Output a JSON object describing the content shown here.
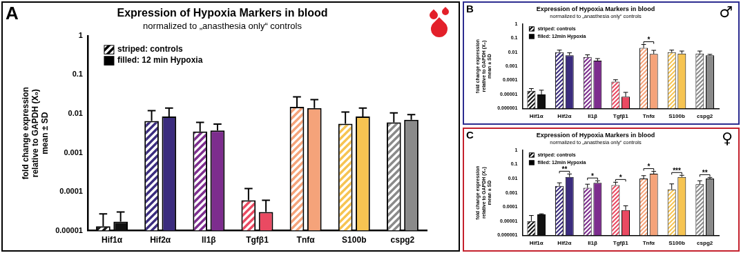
{
  "chart_data": [
    {
      "type": "bar",
      "panel": "A",
      "title": "Expression of Hypoxia Markers in blood",
      "subtitle": "normalized to „anasthesia only“ controls",
      "y_label": [
        "fold change expression",
        "relative to GAPDH (X₀)",
        "mean ± SD"
      ],
      "categories": [
        "Hif1α",
        "Hif2α",
        "Il1β",
        "Tgfβ1",
        "Tnfα",
        "S100b",
        "cspg2"
      ],
      "colors": [
        "#111111",
        "#3b2c7e",
        "#7d2d8e",
        "#ea4a62",
        "#f5a37a",
        "#f6c452",
        "#8a8a8a"
      ],
      "series": [
        {
          "name": "striped: controls",
          "values": [
            1.3e-05,
            0.0065,
            0.0035,
            6e-05,
            0.015,
            0.0055,
            0.006
          ],
          "errors": [
            1.4e-05,
            0.0055,
            0.0025,
            6e-05,
            0.012,
            0.0055,
            0.0045
          ]
        },
        {
          "name": "filled: 12 min Hypoxia",
          "values": [
            1.7e-05,
            0.0085,
            0.0037,
            3e-05,
            0.014,
            0.0085,
            0.007
          ],
          "errors": [
            1.3e-05,
            0.0055,
            0.0017,
            3e-05,
            0.009,
            0.0055,
            0.0025
          ]
        }
      ],
      "annotations": [],
      "log": "y",
      "grid": false,
      "legend": "upper left",
      "ylim": [
        1e-05,
        1
      ],
      "yticks": [
        1e-05,
        0.0001,
        0.001,
        0.01,
        0.1,
        1
      ]
    },
    {
      "type": "bar",
      "panel": "B",
      "symbol": "♂",
      "title": "Expression of Hypoxia Markers in blood",
      "subtitle": "normalized to „anasthesia only“ controls",
      "y_label": [
        "fold change expression",
        "relative to GAPDH (X₀)",
        "mean ± SD"
      ],
      "categories": [
        "Hif1α",
        "Hif2α",
        "Il1β",
        "Tgfβ1",
        "Tnfα",
        "S100b",
        "cspg2"
      ],
      "colors": [
        "#111111",
        "#3b2c7e",
        "#7d2d8e",
        "#ea4a62",
        "#f5a37a",
        "#f6c452",
        "#8a8a8a"
      ],
      "series": [
        {
          "name": "striped: controls",
          "values": [
            1.8e-05,
            0.01,
            0.0045,
            8e-05,
            0.02,
            0.01,
            0.008
          ],
          "errors": [
            8e-06,
            0.004,
            0.002,
            3e-05,
            0.015,
            0.004,
            0.004
          ]
        },
        {
          "name": "filled: 12min Hypoxia",
          "values": [
            1e-05,
            0.006,
            0.0025,
            7e-06,
            0.0075,
            0.008,
            0.006
          ],
          "errors": [
            1e-05,
            0.003,
            0.001,
            7e-06,
            0.006,
            0.004,
            0.001
          ]
        }
      ],
      "annotations": [
        {
          "category": "Tnfα",
          "label": "*"
        }
      ],
      "log": "y",
      "grid": false,
      "legend": "upper left",
      "ylim": [
        1e-06,
        1
      ],
      "yticks": [
        1e-06,
        1e-05,
        0.0001,
        0.001,
        0.01,
        0.1,
        1
      ]
    },
    {
      "type": "bar",
      "panel": "C",
      "symbol": "♀",
      "title": "Expression of Hypoxia Markers in blood",
      "subtitle": "normalized to „anasthesia only“ controls",
      "y_label": [
        "fold change expression",
        "relative to GAPDH (X₀)",
        "mean ± SD"
      ],
      "categories": [
        "Hif1α",
        "Hif2α",
        "Il1β",
        "Tgfβ1",
        "Tnfα",
        "S100b",
        "cspg2"
      ],
      "colors": [
        "#111111",
        "#3b2c7e",
        "#7d2d8e",
        "#ea4a62",
        "#f5a37a",
        "#f6c452",
        "#8a8a8a"
      ],
      "series": [
        {
          "name": "striped: controls",
          "values": [
            1e-05,
            0.003,
            0.0022,
            0.0035,
            0.01,
            0.0017,
            0.004
          ],
          "errors": [
            1.5e-05,
            0.002,
            0.0018,
            0.002,
            0.006,
            0.0025,
            0.003
          ]
        },
        {
          "name": "filled: 12min Hypoxia",
          "values": [
            3e-05,
            0.013,
            0.005,
            6e-05,
            0.022,
            0.013,
            0.01
          ],
          "errors": [
            3e-06,
            0.008,
            0.002,
            6e-05,
            0.01,
            0.004,
            0.002
          ]
        }
      ],
      "annotations": [
        {
          "category": "Hif2α",
          "label": "**"
        },
        {
          "category": "Il1β",
          "label": "*"
        },
        {
          "category": "Tgfβ1",
          "label": "*"
        },
        {
          "category": "Tnfα",
          "label": "*"
        },
        {
          "category": "S100b",
          "label": "***"
        },
        {
          "category": "cspg2",
          "label": "**"
        }
      ],
      "log": "y",
      "grid": false,
      "legend": "upper left",
      "ylim": [
        1e-06,
        1
      ],
      "yticks": [
        1e-06,
        1e-05,
        0.0001,
        0.001,
        0.01,
        0.1,
        1
      ]
    }
  ]
}
